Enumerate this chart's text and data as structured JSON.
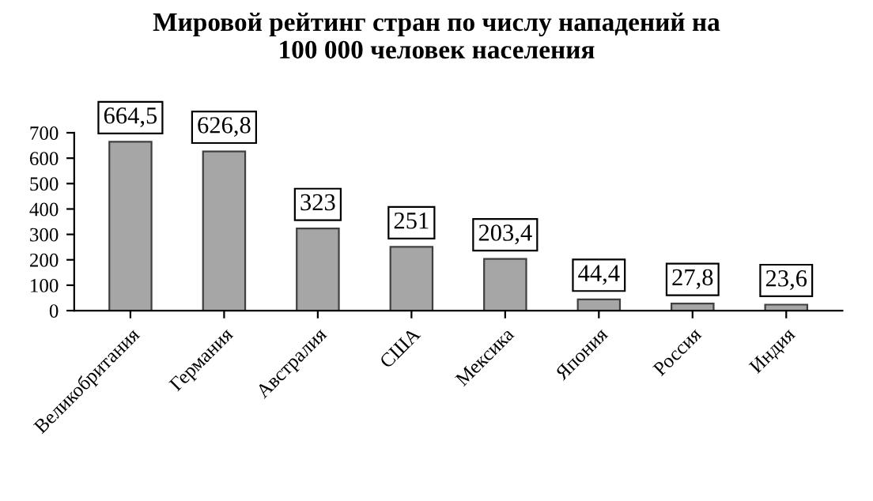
{
  "chart_data": {
    "type": "bar",
    "title": "Мировой рейтинг стран по числу нападений на\n100 000 человек населения",
    "categories": [
      "Великобритания",
      "Германия",
      "Австралия",
      "США",
      "Мексика",
      "Япония",
      "Россия",
      "Индия"
    ],
    "values": [
      664.5,
      626.8,
      323,
      251,
      203.4,
      44.4,
      27.8,
      23.6
    ],
    "value_labels": [
      "664,5",
      "626,8",
      "323",
      "251",
      "203,4",
      "44,4",
      "27,8",
      "23,6"
    ],
    "color": "#a6a6a6",
    "ylim": [
      0,
      700
    ],
    "yticks": [
      0,
      100,
      200,
      300,
      400,
      500,
      600,
      700
    ],
    "grid": false,
    "legend": false
  }
}
